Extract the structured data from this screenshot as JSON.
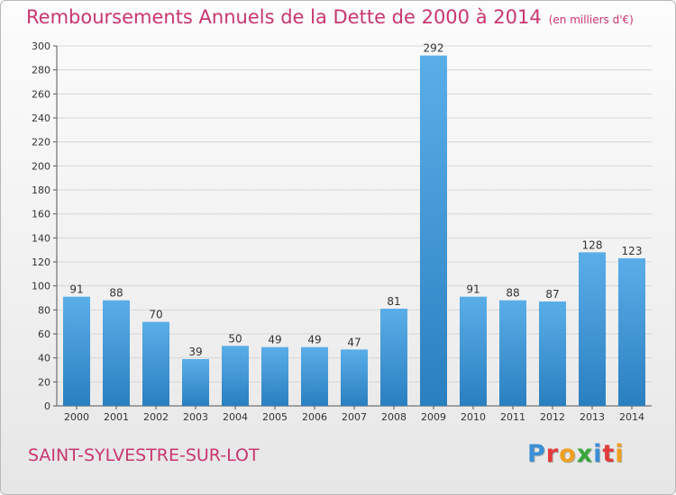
{
  "header": {
    "title": "Remboursements Annuels de la Dette de 2000 à 2014",
    "unit": "(en milliers d'€)"
  },
  "footer": {
    "commune": "SAINT-SYLVESTRE-SUR-LOT",
    "logo_text": "Proxiti",
    "logo_letter_colors": [
      "#3a8fd6",
      "#e23b3b",
      "#f0a020",
      "#37a83a",
      "#3a8fd6",
      "#e23b3b",
      "#f0a020"
    ]
  },
  "colors": {
    "title": "#c8366f",
    "bar_light": "#5aaee8",
    "bar_dark": "#2a7fc0",
    "grid": "#d6d6d6",
    "axis_text": "#333333"
  },
  "chart_data": {
    "type": "bar",
    "title": "Remboursements Annuels de la Dette de 2000 à 2014",
    "subtitle": "(en milliers d'€)",
    "xlabel": "",
    "ylabel": "",
    "categories": [
      "2000",
      "2001",
      "2002",
      "2003",
      "2004",
      "2005",
      "2006",
      "2007",
      "2008",
      "2009",
      "2010",
      "2011",
      "2012",
      "2013",
      "2014"
    ],
    "values": [
      91,
      88,
      70,
      39,
      50,
      49,
      49,
      47,
      81,
      292,
      91,
      88,
      87,
      128,
      123
    ],
    "ylim": [
      0,
      300
    ],
    "yticks": [
      0,
      20,
      40,
      60,
      80,
      100,
      120,
      140,
      160,
      180,
      200,
      220,
      240,
      260,
      280,
      300
    ],
    "grid": true,
    "data_labels": true
  }
}
